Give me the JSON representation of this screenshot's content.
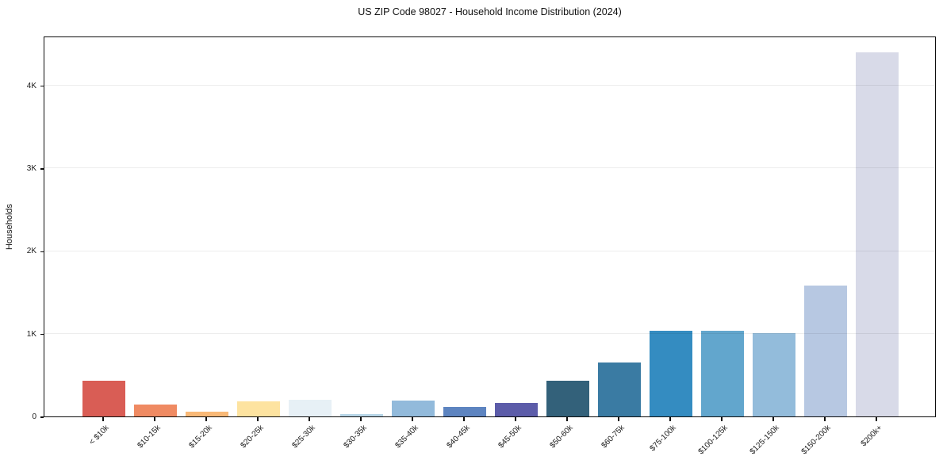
{
  "chart_data": {
    "type": "bar",
    "title": "US ZIP Code 98027 - Household Income Distribution (2024)",
    "xlabel": "",
    "ylabel": "Households",
    "categories": [
      "< $10k",
      "$10-15k",
      "$15-20k",
      "$20-25k",
      "$25-30k",
      "$30-35k",
      "$35-40k",
      "$40-45k",
      "$45-50k",
      "$50-60k",
      "$60-75k",
      "$75-100k",
      "$100-125k",
      "$125-150k",
      "$150-200k",
      "$200k+"
    ],
    "values": [
      435,
      145,
      60,
      185,
      200,
      30,
      195,
      115,
      165,
      435,
      655,
      1040,
      1040,
      1005,
      1580,
      4400
    ],
    "bar_colors": [
      "#d95d55",
      "#ef8a62",
      "#f8b876",
      "#fde3a0",
      "#e7f0f6",
      "#b8d6e8",
      "#92badb",
      "#5d84c0",
      "#5c5ca9",
      "#33617a",
      "#3a7ba3",
      "#348cc1",
      "#62a6cd",
      "#93bcdb",
      "#b7c8e2",
      "#d8dae8"
    ],
    "ylim": [
      0,
      4600
    ],
    "ytick_values": [
      0,
      1000,
      2000,
      3000,
      4000
    ],
    "ytick_labels": [
      "0",
      "1K",
      "2K",
      "3K",
      "4K"
    ],
    "grid": "horizontal-light",
    "legend_position": "none",
    "xtick_rotation": 45,
    "background_color": "#ffffff",
    "spine_color": "#0d0d0d"
  }
}
